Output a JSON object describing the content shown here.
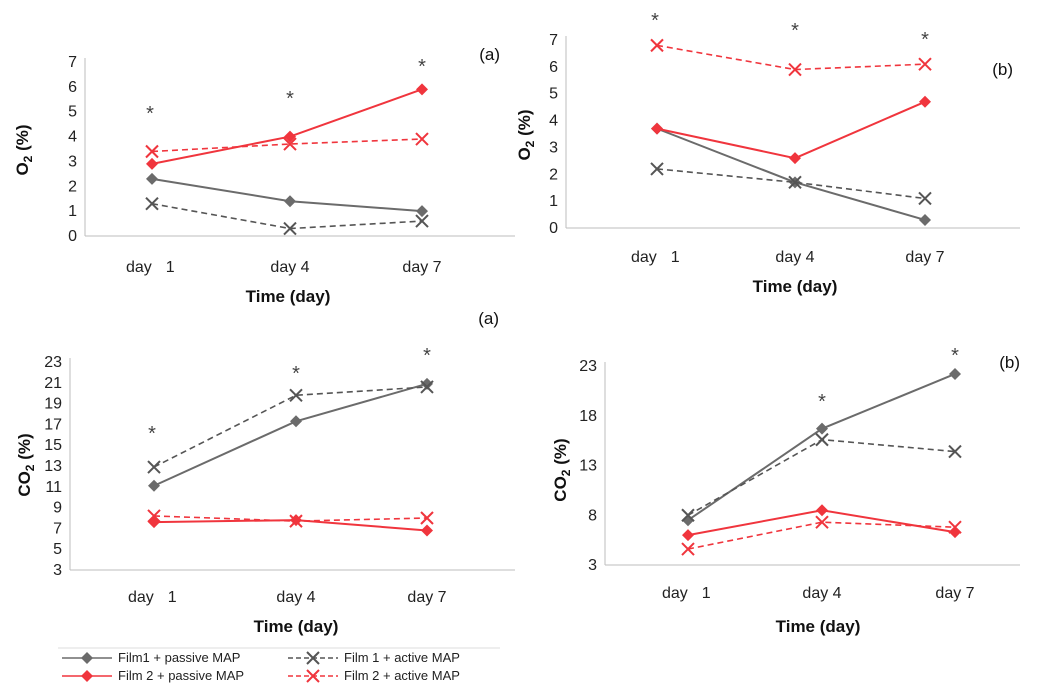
{
  "colors": {
    "film1_passive": "#6b6b6b",
    "film1_active": "#555555",
    "film2_passive": "#f0353d",
    "film2_active": "#f0353d"
  },
  "legend": [
    {
      "key": "f1p",
      "label": "Film1 + passive MAP",
      "color": "#6b6b6b",
      "dash": false,
      "marker": "diamond"
    },
    {
      "key": "f1a",
      "label": "Film 1 + active MAP",
      "color": "#555555",
      "dash": true,
      "marker": "x"
    },
    {
      "key": "f2p",
      "label": "Film 2 + passive MAP",
      "color": "#f0353d",
      "dash": false,
      "marker": "diamond"
    },
    {
      "key": "f2a",
      "label": "Film 2 + active MAP",
      "color": "#f0353d",
      "dash": true,
      "marker": "x"
    }
  ],
  "chart_data": [
    {
      "type": "line",
      "panel": "(a)",
      "categories": [
        "day 1",
        "day 4",
        "day 7"
      ],
      "xlabel": "Time (day)",
      "ylabel": "O2 (%)",
      "ylim": [
        0,
        7
      ],
      "yticks": [
        0,
        1,
        2,
        3,
        4,
        5,
        6,
        7
      ],
      "significance": [
        "*",
        "*",
        "*"
      ],
      "series": [
        {
          "key": "f1p",
          "values": [
            2.3,
            1.4,
            1.0
          ]
        },
        {
          "key": "f1a",
          "values": [
            1.3,
            0.3,
            0.6
          ]
        },
        {
          "key": "f2p",
          "values": [
            2.9,
            4.0,
            5.9
          ]
        },
        {
          "key": "f2a",
          "values": [
            3.4,
            3.7,
            3.9
          ]
        }
      ]
    },
    {
      "type": "line",
      "panel": "(b)",
      "categories": [
        "day 1",
        "day 4",
        "day 7"
      ],
      "xlabel": "Time (day)",
      "ylabel": "O2 (%)",
      "ylim": [
        0,
        7
      ],
      "yticks": [
        0,
        1,
        2,
        3,
        4,
        5,
        6,
        7
      ],
      "significance": [
        "*",
        "*",
        "*"
      ],
      "series": [
        {
          "key": "f1p",
          "values": [
            3.7,
            1.7,
            0.3
          ]
        },
        {
          "key": "f1a",
          "values": [
            2.2,
            1.7,
            1.1
          ]
        },
        {
          "key": "f2p",
          "values": [
            3.7,
            2.6,
            4.7
          ]
        },
        {
          "key": "f2a",
          "values": [
            6.8,
            5.9,
            6.1
          ]
        }
      ]
    },
    {
      "type": "line",
      "panel": "(a)",
      "categories": [
        "day 1",
        "day 4",
        "day 7"
      ],
      "xlabel": "Time (day)",
      "ylabel": "CO2 (%)",
      "ylim": [
        3,
        23
      ],
      "yticks": [
        3,
        5,
        7,
        9,
        11,
        13,
        15,
        17,
        19,
        21,
        23
      ],
      "significance": [
        "*",
        "*",
        "*"
      ],
      "series": [
        {
          "key": "f1p",
          "values": [
            11.1,
            17.3,
            20.9
          ]
        },
        {
          "key": "f1a",
          "values": [
            12.9,
            19.8,
            20.6
          ]
        },
        {
          "key": "f2p",
          "values": [
            7.6,
            7.8,
            6.8
          ]
        },
        {
          "key": "f2a",
          "values": [
            8.2,
            7.7,
            8.0
          ]
        }
      ]
    },
    {
      "type": "line",
      "panel": "(b)",
      "categories": [
        "day 1",
        "day 4",
        "day 7"
      ],
      "xlabel": "Time (day)",
      "ylabel": "CO2 (%)",
      "ylim": [
        3,
        23
      ],
      "yticks": [
        3,
        8,
        13,
        18,
        23
      ],
      "significance": [
        "",
        "*",
        "*"
      ],
      "series": [
        {
          "key": "f1p",
          "values": [
            7.5,
            16.7,
            22.2
          ]
        },
        {
          "key": "f1a",
          "values": [
            8.0,
            15.6,
            14.4
          ]
        },
        {
          "key": "f2p",
          "values": [
            6.0,
            8.5,
            6.3
          ]
        },
        {
          "key": "f2a",
          "values": [
            4.6,
            7.3,
            6.8
          ]
        }
      ]
    }
  ]
}
